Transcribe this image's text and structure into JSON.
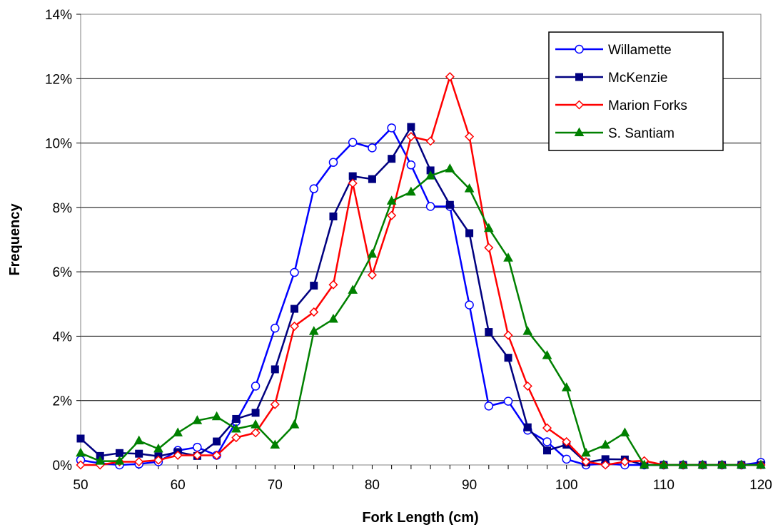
{
  "chart_data": {
    "type": "line",
    "xlabel": "Fork Length (cm)",
    "ylabel": "Frequency",
    "xlim": [
      50,
      120
    ],
    "ylim": [
      0,
      0.14
    ],
    "x_ticks": [
      "50",
      "60",
      "70",
      "80",
      "90",
      "100",
      "110",
      "120"
    ],
    "y_ticks": [
      "0%",
      "2%",
      "4%",
      "6%",
      "8%",
      "10%",
      "12%",
      "14%"
    ],
    "grid": "horizontal",
    "legend_position": "top-right",
    "x": [
      50,
      52,
      54,
      56,
      58,
      60,
      62,
      64,
      66,
      68,
      70,
      72,
      74,
      76,
      78,
      80,
      82,
      84,
      86,
      88,
      90,
      92,
      94,
      96,
      98,
      100,
      102,
      104,
      106,
      108,
      110,
      112,
      114,
      116,
      118,
      120
    ],
    "series": [
      {
        "name": "Willamette",
        "color": "#0000FF",
        "marker": "circle-open",
        "values": [
          0.0015,
          0.0005,
          0.0,
          0.0003,
          0.001,
          0.0045,
          0.0055,
          0.003,
          0.0135,
          0.0245,
          0.0425,
          0.0598,
          0.0858,
          0.094,
          0.1002,
          0.0985,
          0.1047,
          0.0932,
          0.0803,
          0.0803,
          0.0497,
          0.0183,
          0.0198,
          0.0108,
          0.0072,
          0.0018,
          0.0,
          0.0004,
          0.0,
          0.0,
          0.0,
          0.0,
          0.0,
          0.0,
          0.0,
          0.0008
        ]
      },
      {
        "name": "McKenzie",
        "color": "#000080",
        "marker": "square",
        "values": [
          0.0082,
          0.0028,
          0.0037,
          0.0035,
          0.0027,
          0.004,
          0.0028,
          0.0073,
          0.0143,
          0.0162,
          0.0297,
          0.0485,
          0.0557,
          0.0772,
          0.0897,
          0.0888,
          0.0951,
          0.105,
          0.0915,
          0.0808,
          0.072,
          0.0413,
          0.0333,
          0.0117,
          0.0045,
          0.0063,
          0.0008,
          0.0018,
          0.0017,
          0.0,
          0.0,
          0.0,
          0.0,
          0.0,
          0.0,
          0.0
        ]
      },
      {
        "name": "Marion Forks",
        "color": "#FF0000",
        "marker": "diamond-open",
        "values": [
          0.0,
          0.0,
          0.001,
          0.001,
          0.0015,
          0.003,
          0.003,
          0.003,
          0.0085,
          0.01,
          0.0188,
          0.0431,
          0.0475,
          0.056,
          0.0875,
          0.059,
          0.0775,
          0.102,
          0.1006,
          0.1206,
          0.102,
          0.0675,
          0.0403,
          0.0245,
          0.0115,
          0.0072,
          0.001,
          0.0,
          0.001,
          0.0013,
          0.0,
          0.0,
          0.0,
          0.0,
          0.0,
          0.0
        ]
      },
      {
        "name": "S. Santiam",
        "color": "#008000",
        "marker": "triangle",
        "values": [
          0.0037,
          0.0012,
          0.0012,
          0.0075,
          0.005,
          0.01,
          0.0138,
          0.015,
          0.0112,
          0.0125,
          0.0062,
          0.0125,
          0.0415,
          0.0453,
          0.0543,
          0.0655,
          0.082,
          0.0848,
          0.0898,
          0.092,
          0.0858,
          0.0735,
          0.0643,
          0.0415,
          0.034,
          0.024,
          0.0037,
          0.0062,
          0.01,
          0.0,
          0.0,
          0.0,
          0.0,
          0.0,
          0.0,
          0.0
        ]
      }
    ]
  }
}
